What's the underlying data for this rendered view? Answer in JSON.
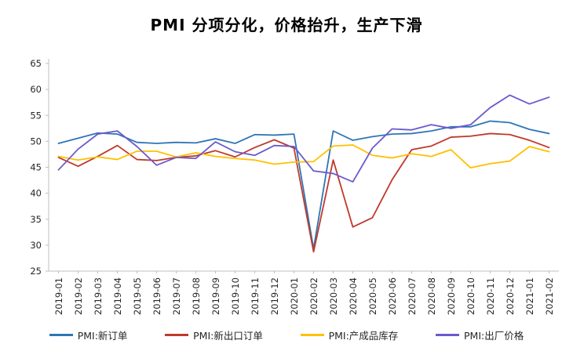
{
  "title": "PMI 分项分化，价格抬升，生产下滑",
  "chart_data": {
    "type": "line",
    "title": "PMI 分项分化，价格抬升，生产下滑",
    "xlabel": "",
    "ylabel": "",
    "ylim": [
      25,
      65
    ],
    "ytick_step": 5,
    "grid": false,
    "legend_position": "bottom",
    "axis_color": "#bfbfbf",
    "categories": [
      "2019-01",
      "2019-02",
      "2019-03",
      "2019-04",
      "2019-05",
      "2019-06",
      "2019-07",
      "2019-08",
      "2019-09",
      "2019-10",
      "2019-11",
      "2019-12",
      "2020-01",
      "2020-02",
      "2020-03",
      "2020-04",
      "2020-05",
      "2020-06",
      "2020-07",
      "2020-08",
      "2020-09",
      "2020-10",
      "2020-11",
      "2020-12",
      "2021-01",
      "2021-02"
    ],
    "series": [
      {
        "name": "PMI:新订单",
        "color": "#2E75B6",
        "values": [
          49.6,
          50.6,
          51.6,
          51.4,
          49.8,
          49.6,
          49.8,
          49.7,
          50.5,
          49.6,
          51.3,
          51.2,
          51.4,
          29.3,
          52.0,
          50.2,
          50.9,
          51.4,
          51.5,
          52.0,
          52.8,
          52.8,
          53.9,
          53.6,
          52.3,
          51.5
        ]
      },
      {
        "name": "PMI:新出口订单",
        "color": "#C0392B",
        "values": [
          46.9,
          45.2,
          47.1,
          49.2,
          46.5,
          46.3,
          46.9,
          47.2,
          48.2,
          47.0,
          48.8,
          50.3,
          48.7,
          28.7,
          46.4,
          33.5,
          35.3,
          42.6,
          48.4,
          49.1,
          50.8,
          51.0,
          51.5,
          51.3,
          50.2,
          48.8
        ]
      },
      {
        "name": "PMI:产成品库存",
        "color": "#FFC000",
        "values": [
          47.1,
          46.4,
          47.0,
          46.5,
          48.1,
          48.1,
          47.0,
          47.8,
          47.1,
          46.7,
          46.4,
          45.6,
          46.0,
          46.1,
          49.1,
          49.3,
          47.3,
          46.8,
          47.6,
          47.1,
          48.4,
          44.9,
          45.7,
          46.2,
          49.0,
          48.0
        ]
      },
      {
        "name": "PMI:出厂价格",
        "color": "#6A5ACD",
        "values": [
          44.5,
          48.5,
          51.4,
          52.0,
          49.0,
          45.4,
          46.9,
          46.7,
          49.9,
          48.0,
          47.3,
          49.2,
          49.0,
          44.3,
          43.8,
          42.2,
          48.7,
          52.4,
          52.2,
          53.2,
          52.5,
          53.2,
          56.5,
          58.9,
          57.2,
          58.5
        ]
      }
    ]
  }
}
